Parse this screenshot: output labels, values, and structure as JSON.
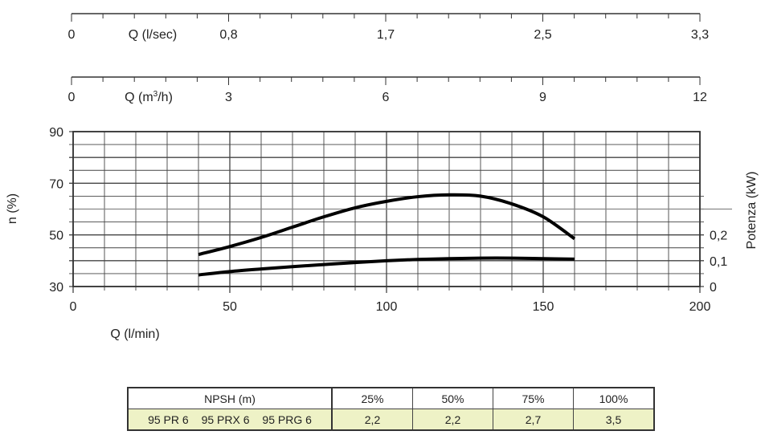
{
  "chart_data": {
    "type": "line",
    "top_axes": [
      {
        "label": "Q (l/sec)",
        "ticks": [
          "0",
          "0,8",
          "1,7",
          "2,5",
          "3,3"
        ]
      },
      {
        "label": "Q (m³/h)",
        "label_base": "Q (m",
        "label_sup": "3",
        "label_tail": "/h)",
        "ticks": [
          "0",
          "3",
          "6",
          "9",
          "12"
        ]
      }
    ],
    "xlabel": "Q (l/min)",
    "xlim": [
      0,
      200
    ],
    "xticks": [
      "0",
      "50",
      "100",
      "150",
      "200"
    ],
    "ylabel": "n (%)",
    "ylim": [
      30,
      90
    ],
    "yticks": [
      "30",
      "50",
      "70",
      "90"
    ],
    "y2label": "Potenza (kW)",
    "y2ticks": [
      "0",
      "0,1",
      "0,2"
    ],
    "grid": true,
    "x": [
      40,
      50,
      60,
      70,
      80,
      90,
      100,
      110,
      120,
      130,
      140,
      150,
      160
    ],
    "series": [
      {
        "axis": "left",
        "values": [
          42.4,
          45.5,
          49,
          53,
          57,
          60.5,
          63,
          64.8,
          65.5,
          65,
          62,
          57,
          48.5
        ]
      },
      {
        "axis": "right",
        "values": [
          0.045,
          0.058,
          0.068,
          0.077,
          0.085,
          0.093,
          0.1,
          0.105,
          0.108,
          0.11,
          0.11,
          0.108,
          0.106
        ]
      }
    ]
  },
  "npsh_table": {
    "header": "NPSH (m)",
    "columns": [
      "25%",
      "50%",
      "75%",
      "100%"
    ],
    "models": [
      "95 PR 6",
      "95 PRX 6",
      "95 PRG 6"
    ],
    "values": [
      "2,2",
      "2,2",
      "2,7",
      "3,5"
    ],
    "row_color": "#eef2c6"
  }
}
